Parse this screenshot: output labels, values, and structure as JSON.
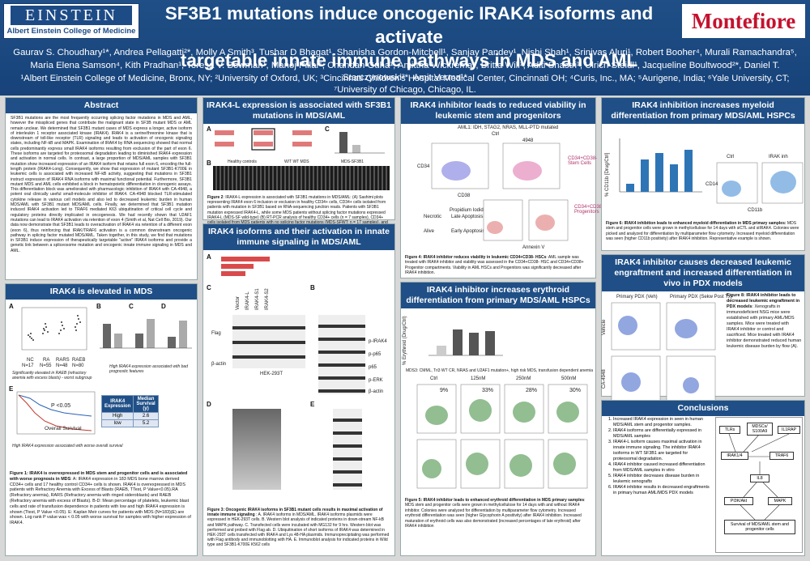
{
  "header": {
    "logo_left_top": "EINSTEIN",
    "logo_left_bottom": "Albert Einstein College of Medicine",
    "logo_right": "Montefiore",
    "title_line1": "SF3B1 mutations induce oncogenic IRAK4 isoforms and activate",
    "title_line2": "targetable innate immune pathways in MDS and AML",
    "authors": "Gaurav S. Choudhary¹*, Andrea Pellagatti²*, Molly A Smith³, Tushar D Bhagat¹, Shanisha Gordon-Mitchell¹, Sanjay Pandey¹, Nishi Shah¹, Srinivas Aluri¹, Robert Booher⁴, Murali Ramachandra⁵, Maria Elena Samson⁴, Kith Pradhan¹, Teresa V. Bowman¹, Manoj Pillai⁶, Chandan Guha¹, Amittha Wickrema⁷, Britta Will¹, Aditi Shastri¹, Ulrich Steidl¹, Jacqueline Boultwood²*, Daniel T. Starczynowski³*, Amit Verma¹*",
    "affiliations": "¹Albert Einstein College of Medicine, Bronx, NY; ²University of Oxford, UK; ³Cincinnati Children's Hospital Medical Center, Cincinnati OH; ⁴Curis, Inc., MA; ⁵Aurigene, India; ⁶Yale University, CT; ⁷University of Chicago, Chicago, IL."
  },
  "abstract": {
    "heading": "Abstract",
    "text": "SF3B1 mutations are the most frequently occurring splicing factor mutations in MDS and AML, however the misspliced genes that contribute the malignant state in SF3B mutant MDS or AML remain unclear. We determined that SF3B1 mutant cases of MDS express a longer, active isoform of interleukin 1 receptor associated kinase (IRAK4). IRAK4 is a serine/threonine kinase that is downstream of toll-like receptor (TLR) signaling and leads to activation of oncogenic signaling states, including NF-kB and MAPK. Examination of IRAK4 by RNA sequencing showed that normal cells predominantly express small IRAK4 isoforms resulting from exclusion of the part of exon 6. These isoforms are targeted for proteosomal degradation leading to diminished IRAK4 expression and activation in normal cells. In contrast, a large proportion of MDS/AML samples with SF3B1 mutation show increased expression of an IRAK4 isoform that retains full exon 6, encoding the full-length protein (IRAK4-Long). Consequently, we show that expression of mutant SF3B1-K700E in leukemic cells is associated with increased NF-kB activity, suggesting that mutations in SF3B1 instruct expression of IRAK4 RNA isoforms with maximal functional potential. Furthermore, SF3B1 mutant MDS and AML cells exhibited a block in hematopoietic differentiation in clonogenic assays. This differentiation block was ameliorated with pharmacologic inhibition of IRAK4 with CA-4948, a potent oral clinically useful small-molecule inhibitor of IRAK4. CA-4948 blocked TLR-stimulated cytokine release in various cell models and also led to decreased leukemic burden in human MDS/AML with SF3B1 mutant MDS/AML cells. Finally, we determined that SF3B1 mutation induced IRAK4 activation led to TRAF6 mediated K63 ubiquitination of critical cell cycle and regulatory proteins directly implicated in oncogenesis. We had recently shown that U2AF1 mutations can lead to IRAK4 activation via retention of exon 4 (Smith et al, Nat Cell Bio, 2019). Our data now demonstrate that SF3B1 leads to overactivation of IRAK4 via retention of a different exon (exon 6), thus reinforcing that IRAK/TRAF6 activation is a common downstream oncogenic pathway in splicing factor mutated MDS/AML. Taken together, in this study, we find that mutations in SF3B1 induce expression of therapeutically targetable \"active\" IRAK4 isoforms and provide a genetic link between a spliceosome mutation and oncogenic innate immune signaling in MDS and AML."
  },
  "irak4_elevated": {
    "heading": "IRAK4 is elevated in MDS",
    "note1": "Significantly elevated in RAEB (refractory anemia with excess blasts) - worst subgroup",
    "note2": "High IRAK4 expression associated with bad prognostic features",
    "note3": "High IRAK4 expression associated with worse overall survival",
    "groups": [
      "NC",
      "RA",
      "RARS",
      "RAEB"
    ],
    "group_n": [
      "N=17",
      "N=55",
      "N=48",
      "N=80"
    ],
    "km_label": "Overall Survival",
    "km_p": "P <0.05",
    "table_headers": [
      "IRAK4 Expression",
      "Median Survival (y)"
    ],
    "table_rows": [
      [
        "High",
        "2.6"
      ],
      [
        "low",
        "5.2"
      ]
    ],
    "caption_bold": "Figure 1: IRAK4 is overexpressed in MDS stem and progenitor cells and is associated with worse prognosis in MDS",
    "caption": ": A: IRAK4 expression in 183 MDS bone marrow derived CD34+ cells and 17 healthy control CD34+ cells is shown. IRAK4 is overexpressed in MDS patients with Refractory Anemia with Excess of Blasts (RAEB, TTest, P Value<0.05).RA (Refractory anemia), RARS (Refractory anemia with ringed sideroblasts) and RAEB (Refractory anemia with excess of Blasts). B-D: Mean percentage of platelets, leukemic blast cells and rate of transfusion dependence in patients with low and high IRAK4 expression is shown (Ttest, P Value <0.05). E: Kaplan Meir curves for patients with MDS (N=183)(E) are shown. Log rank P value was < 0.05 with worse survival for samples with higher expression of IRAK4."
  },
  "irak4l": {
    "heading": "IRAK4-L expression is associated with SF3B1 mutations in MDS/AML",
    "gel_labels": [
      "Healthy controls",
      "W/T WT MDS",
      "MDS-SF3B1"
    ],
    "caption_bold": "Figure 2",
    "caption": ": IRAK4-L expression is associated with SF3B1 mutations in MDS/AML: (A) Sashimi plots representing IRAK4 exon 6 inclusion or exclusion in healthy CD34+ cells, CD34+ cells isolated from patients with mutation in SF3B1 based on RNA-sequencing junction reads. Patients with SF3B1 mutation expressed IRAK4-L, while some MDS patients without splicing factor mutations expressed IRAK4-L (MDS-SF wild-type) (B) RT-PCR analysis of healthy CD34+ cells (n = 7 samples), CD34+ cells isolated from MDS patients with no splicing factor mutations (MDS-SFWT; n = 17 samples), and from patients with mutation in SF3B1 (MDS-SF3B1mut; n = 12 samples) using primers flanking IRAK4 exon 6. (C) Graph shows the ratio of IRAK4-Long :IRAK4 short isoform which is more in SF3B1 patients as compared to that of healthy controls."
  },
  "isoforms": {
    "heading": "IRAK4 isoforms and their activation in innate immune signaling in MDS/AML",
    "lanes": [
      "Vector",
      "IRAK4-L",
      "IRAK4-S1",
      "IRAK4-S2"
    ],
    "blots": [
      "Flag",
      "β-actin",
      "p-IRAK4",
      "p-p65",
      "p65",
      "p-ERK",
      "β-actin"
    ],
    "cell_label": "HEK-293T",
    "caption_bold": "Figure 3: Oncogenic IRAK4 isoforms in SF3B1 mutant cells results in maximal activation of innate immune signaling",
    "caption": " : A. IRAK4 isoforms in MDS/AML. IRAK4 isoforms plasmids were expressed in HEK-293T cells. B. Western blot analysis of indicated proteins in down-stream NF-kB and MAPK pathway. C. Transfected cells were incubated with MG132 for 9 hrs. Western blot was performed and probed with Flag ab. D. Ubiquitination of short isoforms of IRAK4 was determined in HEK-293T cells transfected with IRAK4 and Lys 48-HA plasmids. Immunoprecipitating was performed with Flag antibody and immunoblotting with HA. E. Immunoblot analysis for indicated proteins in Wild type and SF3B1-K700E K562 cells"
  },
  "viability": {
    "heading": "IRAK4 inhibitor leads to reduced viability in leukemic stem and progenitors",
    "sample": "AML1: IDH, STAG2, NRAS, MLL-PTD mutated",
    "conditions": [
      "Ctrl",
      "4948"
    ],
    "axes": [
      "CD34",
      "CD38",
      "Propidium Iodide",
      "Annexin V"
    ],
    "labels": [
      "CD34+CD38- Stem Cells",
      "CD34+CD38+ Progenitors",
      "Necrotic",
      "Late Apoptosis",
      "Alive",
      "Early Apoptosis"
    ],
    "caption_bold": "Figure 4: IRAK4 inhibitor reduces viability in leukemic CD34+CD38- HSCs",
    "caption": ": AML sample was treated with IRAK4 inhibitor and viability was assessed in the CD34+CD38- HSC and CD34+CD38+ Progenitor compartments. Viability in AML HSCs and Progenitors was significantly decreased after IRAK4 inhibition."
  },
  "erythroid": {
    "heading": "IRAK4 inhibitor increases erythroid differentiation from primary MDS/AML HSPCs",
    "sample": "MDS3: CMML, Tri3 WT CR, NRAS and U2AF1 mutation+, high risk MDS, transfusion dependent anemia",
    "concs": [
      "Ctrl",
      "125nM",
      "250nM",
      "500nM"
    ],
    "percents": [
      "9%",
      "33%",
      "28%",
      "30%"
    ],
    "chart_title": "% Erythroid (Drug/Ctrl)",
    "caption_bold": "Figure 5: IRAK4 inhibitor leads to enhanced erythroid differentiation in MDS primary samples",
    "caption": ": MDS stem and progenitor cells were grown in methylcellulose for 14 days with and without IRAK4 inhibitor. Colonies were analyzed for differentiation by multiparameter flow cytometry. Increased erythroid differentiation was seen (higher Glycophorin A positivity) after IRAK4 inhibition. Increased maturation of erythroid cells was also demonstrated (increased percentages of late erythroid) after IRAK4 inhibition"
  },
  "myeloid": {
    "heading": "IRAK4 inhibition increases myeloid differentiation from primary MDS/AML HSPCs",
    "ylabel": "% CD11b [Drug/Ctrl]",
    "plot_labels": [
      "Ctrl",
      "IRAK inh"
    ],
    "axes": [
      "CD14",
      "CD11b"
    ],
    "caption_bold": "Figure 6: IRAK4 inhibition leads to enhanced myeloid differentiation in MDS primary samples:",
    "caption": " MDS stem and progenitor cells were grown in methylcellulose for 14 days with siCTL and siIRAK4. Colonies were picked and analyzed for differentiation by multiparameter flow cytometry. Increased myeloid differentiation was seen (higher CD11b positivity) after IRAK4 inhibition. Representative example is shown."
  },
  "engraft": {
    "heading": "IRAK4 inhibitor causes decreased leukemic engraftment and increased differentiation in vivo in PDX models",
    "pdx": [
      "Primary PDX (Veh)",
      "Primary PDX (Sekw Post Tx)"
    ],
    "rows": [
      "Vehicle",
      "CA-4948"
    ],
    "caption_bold": "Figure 8: IRAK4 inhibitor leads to decreased leukemic engraftment in PDX models",
    "caption": ": Xenografts in immunodeficient NSG mice were established with primary AML/MDS samples. Mice were treated with IRAK4 inhibitor or control and sacrificed. Mice treated with IRAK4 inhibitor demonstrated reduced human leukemic disease burden by flow (A)."
  },
  "conclusions": {
    "heading": "Conclusions",
    "items": [
      "Increased IRAK4 expression in seen in human MDS/AML stem and progenitor samples.",
      "IRAK4 isoforms are differentially expressed in MDS/AML samples",
      "IRAK4-L isoform causes maximal activation in innate immune signaling. The inhibitor IRAK4 isoforms in WT SF3B1 are targeted for proteosomal degradation.",
      "IRAK4 inhibitor caused increased differentiation from MDS/AML samples in vitro",
      "IRAK4 inhibitor decreases disease burden in leukemic xenografts",
      "IRAK4 inhibitor results in decreased engraftments in primary human AML/MDS PDX models"
    ],
    "pathway": [
      "TLRs",
      "MDSCs/ S100A9",
      "IL1RAP",
      "IRAK1/4",
      "TRAF6",
      "IL8",
      "PI3K/Akt",
      "MAPK",
      "Survival of MDS/AML stem and progenitor cells"
    ]
  }
}
